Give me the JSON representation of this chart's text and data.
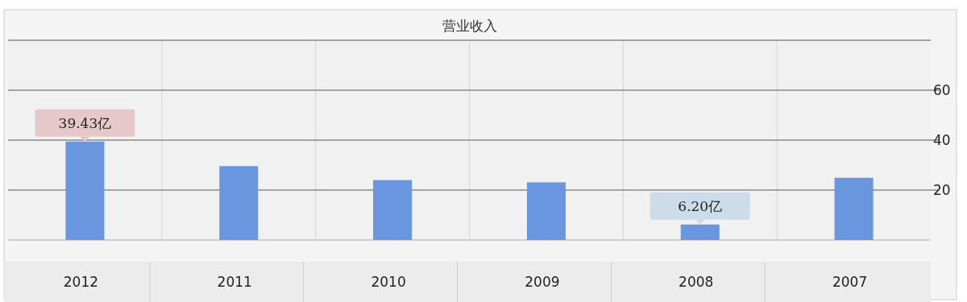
{
  "chart_data": {
    "type": "bar",
    "title": "营业收入",
    "categories": [
      "2012",
      "2011",
      "2010",
      "2009",
      "2008",
      "2007"
    ],
    "values": [
      39.43,
      29.6,
      24.0,
      23.1,
      6.2,
      24.9
    ],
    "color": "#6a96e0",
    "ylim": [
      0,
      80
    ],
    "yticks": [
      20,
      40,
      60
    ],
    "grid": true,
    "value_labels": [
      "39.43亿",
      null,
      null,
      null,
      "6.20亿",
      null
    ]
  }
}
